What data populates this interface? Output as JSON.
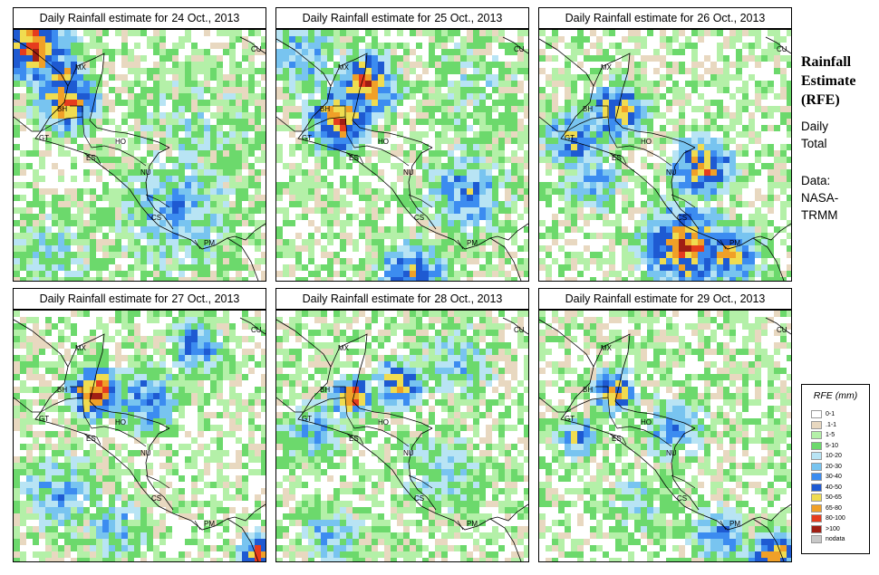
{
  "panels": [
    {
      "title_prefix": "Daily Rainfall estimate for",
      "date": "24 Oct., 2013"
    },
    {
      "title_prefix": "Daily Rainfall estimate for",
      "date": "25 Oct., 2013"
    },
    {
      "title_prefix": "Daily Rainfall estimate for",
      "date": "26 Oct., 2013"
    },
    {
      "title_prefix": "Daily Rainfall estimate for",
      "date": "27 Oct., 2013"
    },
    {
      "title_prefix": "Daily Rainfall estimate for",
      "date": "28 Oct., 2013"
    },
    {
      "title_prefix": "Daily Rainfall estimate for",
      "date": "29 Oct., 2013"
    }
  ],
  "country_labels": [
    "CU",
    "MX",
    "BH",
    "GT",
    "HO",
    "ES",
    "NU",
    "CS",
    "PM"
  ],
  "sidebar": {
    "title_line1": "Rainfall",
    "title_line2": "Estimate",
    "title_line3": "(RFE)",
    "period_line1": "Daily",
    "period_line2": "Total",
    "source_line1": "Data:",
    "source_line2": "NASA-",
    "source_line3": "TRMM"
  },
  "legend": {
    "title": "RFE (mm)",
    "items": [
      {
        "label": "0-1",
        "color": "#ffffff"
      },
      {
        "label": ".1-1",
        "color": "#e8d8c0"
      },
      {
        "label": "1-5",
        "color": "#b4f0a8"
      },
      {
        "label": "5-10",
        "color": "#6cd96c"
      },
      {
        "label": "10-20",
        "color": "#b8e4f4"
      },
      {
        "label": "20-30",
        "color": "#78c4f0"
      },
      {
        "label": "30-40",
        "color": "#3c8cf0"
      },
      {
        "label": "40-50",
        "color": "#1e5ad2"
      },
      {
        "label": "50-65",
        "color": "#f0dc50"
      },
      {
        "label": "65-80",
        "color": "#f0a028"
      },
      {
        "label": "80-100",
        "color": "#e63c1e"
      },
      {
        "label": ">100",
        "color": "#a01e14"
      },
      {
        "label": "nodata",
        "color": "#c8c8c8"
      }
    ]
  }
}
